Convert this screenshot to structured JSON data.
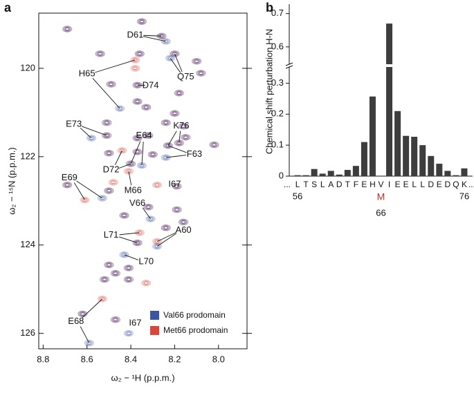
{
  "panels": [
    "a",
    "b"
  ],
  "chart_data": [
    {
      "type": "scatter",
      "xlabel": "ω₂ − ¹H (p.p.m.)",
      "ylabel": "ω₂ − ¹⁵N (p.p.m.)",
      "xlim": [
        8.82,
        7.87
      ],
      "ylim": [
        118.75,
        126.35
      ],
      "xticks": [
        8.8,
        8.6,
        8.4,
        8.2,
        {
          "value": 8,
          "label": "8.0"
        }
      ],
      "yticks": [
        120,
        122,
        124,
        126
      ],
      "legend": "lower right",
      "series": [
        {
          "name": "Val66 prodomain",
          "color": "#3b55a3",
          "x": [
            8.69,
            8.35,
            8.26,
            8.36,
            8.2,
            8.54,
            8.1,
            8.08,
            8.37,
            8.49,
            8.18,
            8.33,
            8.37,
            8.51,
            8.2,
            8.16,
            8.24,
            8.15,
            8.51,
            8.37,
            8.32,
            8.23,
            8.18,
            8.02,
            8.5,
            8.37,
            8.3,
            8.4,
            8.69,
            8.5,
            8.19,
            8.32,
            8.19,
            8.43,
            8.24,
            8.16,
            8.37,
            8.5,
            8.41,
            8.47,
            8.41,
            8.52,
            8.62,
            8.47,
            8.24,
            8.22,
            8.45,
            8.58,
            8.24,
            8.35,
            8.53,
            8.31,
            8.28,
            8.43,
            8.59,
            8.41
          ],
          "y": [
            119.11,
            118.94,
            119.27,
            119.67,
            119.67,
            119.67,
            119.84,
            120.11,
            120.38,
            120.36,
            120.56,
            120.88,
            120.75,
            121.23,
            121.02,
            121.31,
            121.23,
            121.56,
            121.52,
            121.58,
            121.52,
            121.75,
            121.69,
            121.73,
            121.92,
            121.89,
            121.95,
            122.16,
            122.64,
            122.77,
            122.67,
            123.14,
            123.2,
            123.33,
            123.61,
            123.48,
            123.95,
            124.45,
            124.52,
            124.64,
            124.78,
            124.78,
            125.56,
            125.69,
            119.39,
            119.77,
            120.91,
            121.58,
            122.02,
            122.2,
            122.94,
            123.41,
            124.03,
            124.22,
            126.22,
            126.0
          ]
        },
        {
          "name": "Met66 prodomain",
          "color": "#d9473c",
          "x": [
            8.69,
            8.35,
            8.26,
            8.36,
            8.2,
            8.54,
            8.1,
            8.08,
            8.37,
            8.49,
            8.18,
            8.33,
            8.37,
            8.51,
            8.2,
            8.16,
            8.24,
            8.15,
            8.51,
            8.37,
            8.32,
            8.23,
            8.18,
            8.02,
            8.5,
            8.37,
            8.3,
            8.4,
            8.69,
            8.5,
            8.19,
            8.32,
            8.19,
            8.43,
            8.24,
            8.16,
            8.37,
            8.5,
            8.41,
            8.47,
            8.41,
            8.52,
            8.62,
            8.47,
            8.38,
            8.38,
            8.44,
            8.41,
            8.48,
            8.61,
            8.28,
            8.36,
            8.28,
            8.53,
            8.33
          ],
          "y": [
            119.11,
            118.94,
            119.27,
            119.67,
            119.67,
            119.67,
            119.84,
            120.11,
            120.38,
            120.36,
            120.56,
            120.88,
            120.75,
            121.23,
            121.02,
            121.31,
            121.23,
            121.56,
            121.52,
            121.58,
            121.52,
            121.75,
            121.69,
            121.73,
            121.92,
            121.89,
            121.95,
            122.16,
            122.64,
            122.77,
            122.67,
            123.14,
            123.2,
            123.33,
            123.61,
            123.48,
            123.95,
            124.45,
            124.52,
            124.64,
            124.78,
            124.78,
            125.56,
            125.69,
            119.81,
            120.0,
            121.86,
            122.33,
            122.58,
            122.98,
            122.64,
            123.72,
            123.92,
            125.22,
            124.86
          ]
        }
      ],
      "annotations": [
        {
          "text": "D61",
          "x": 8.38,
          "y": 119.25,
          "to": [
            [
              8.26,
              119.27
            ],
            [
              8.24,
              119.39
            ]
          ]
        },
        {
          "text": "Q75",
          "x": 8.15,
          "y": 120.2,
          "to": [
            [
              8.2,
              119.67
            ],
            [
              8.22,
              119.77
            ]
          ]
        },
        {
          "text": "H65",
          "x": 8.6,
          "y": 120.13,
          "to": [
            [
              8.38,
              119.81
            ],
            [
              8.45,
              120.91
            ]
          ]
        },
        {
          "text": "D74",
          "x": 8.31,
          "y": 120.39,
          "to": [
            [
              8.37,
              120.38
            ]
          ]
        },
        {
          "text": "E73",
          "x": 8.66,
          "y": 121.27,
          "to": [
            [
              8.58,
              121.58
            ],
            [
              8.51,
              121.52
            ]
          ]
        },
        {
          "text": "K76",
          "x": 8.17,
          "y": 121.31,
          "to": [
            [
              8.23,
              121.75
            ],
            [
              8.18,
              121.69
            ]
          ]
        },
        {
          "text": "E64",
          "x": 8.34,
          "y": 121.53,
          "to": [
            [
              8.4,
              122.16
            ],
            [
              8.35,
              122.2
            ]
          ]
        },
        {
          "text": "F63",
          "x": 8.11,
          "y": 121.95,
          "to": [
            [
              8.23,
              121.75
            ],
            [
              8.24,
              122.02
            ]
          ]
        },
        {
          "text": "D72",
          "x": 8.49,
          "y": 122.3,
          "to": [
            [
              8.44,
              121.86
            ],
            [
              8.4,
              122.16
            ]
          ]
        },
        {
          "text": "M66",
          "x": 8.39,
          "y": 122.77,
          "to": [
            [
              8.41,
              122.33
            ]
          ]
        },
        {
          "text": "I67",
          "x": 8.2,
          "y": 122.63,
          "to": []
        },
        {
          "text": "E69",
          "x": 8.68,
          "y": 122.48,
          "to": [
            [
              8.61,
              122.98
            ],
            [
              8.53,
              122.94
            ]
          ]
        },
        {
          "text": "V66",
          "x": 8.37,
          "y": 123.06,
          "to": [
            [
              8.31,
              123.41
            ]
          ]
        },
        {
          "text": "L71",
          "x": 8.49,
          "y": 123.78,
          "to": [
            [
              8.37,
              123.95
            ],
            [
              8.36,
              123.72
            ]
          ]
        },
        {
          "text": "A60",
          "x": 8.16,
          "y": 123.67,
          "to": [
            [
              8.28,
              123.92
            ],
            [
              8.28,
              124.03
            ]
          ]
        },
        {
          "text": "L70",
          "x": 8.33,
          "y": 124.38,
          "to": [
            [
              8.43,
              124.22
            ]
          ]
        },
        {
          "text": "E68",
          "x": 8.65,
          "y": 125.73,
          "to": [
            [
              8.53,
              125.22
            ],
            [
              8.59,
              126.22
            ]
          ]
        },
        {
          "text": "I67",
          "x": 8.38,
          "y": 125.77,
          "to": []
        }
      ]
    },
    {
      "type": "bar",
      "ylabel": "Chemical shift perturbation H-N",
      "x": [
        56,
        57,
        58,
        59,
        60,
        61,
        62,
        63,
        64,
        65,
        66,
        67,
        68,
        69,
        70,
        71,
        72,
        73,
        74,
        75,
        76
      ],
      "categories": [
        "L",
        "T",
        "S",
        "L",
        "A",
        "D",
        "T",
        "F",
        "E",
        "H",
        "V",
        "I",
        "E",
        "E",
        "L",
        "L",
        "D",
        "E",
        "D",
        "Q",
        "K"
      ],
      "values": [
        0.003,
        0.003,
        0.023,
        0.008,
        0.017,
        0.005,
        0.02,
        0.033,
        0.11,
        0.257,
        null,
        0.67,
        0.21,
        0.13,
        0.127,
        0.1,
        0.065,
        0.04,
        0.017,
        0.003,
        0.025
      ],
      "color": "#3d3d3d",
      "xlim": [
        55,
        77
      ],
      "xticks": [
        56,
        66,
        76
      ],
      "ylim": [
        0,
        0.72
      ],
      "ybreak": [
        0.35,
        0.55
      ],
      "yticks": [
        0,
        0.1,
        0.2,
        0.3,
        0.6,
        0.7
      ],
      "ellipsis": "...",
      "variant": {
        "text": "M",
        "x": 66,
        "color": "#d42a1e"
      }
    }
  ]
}
